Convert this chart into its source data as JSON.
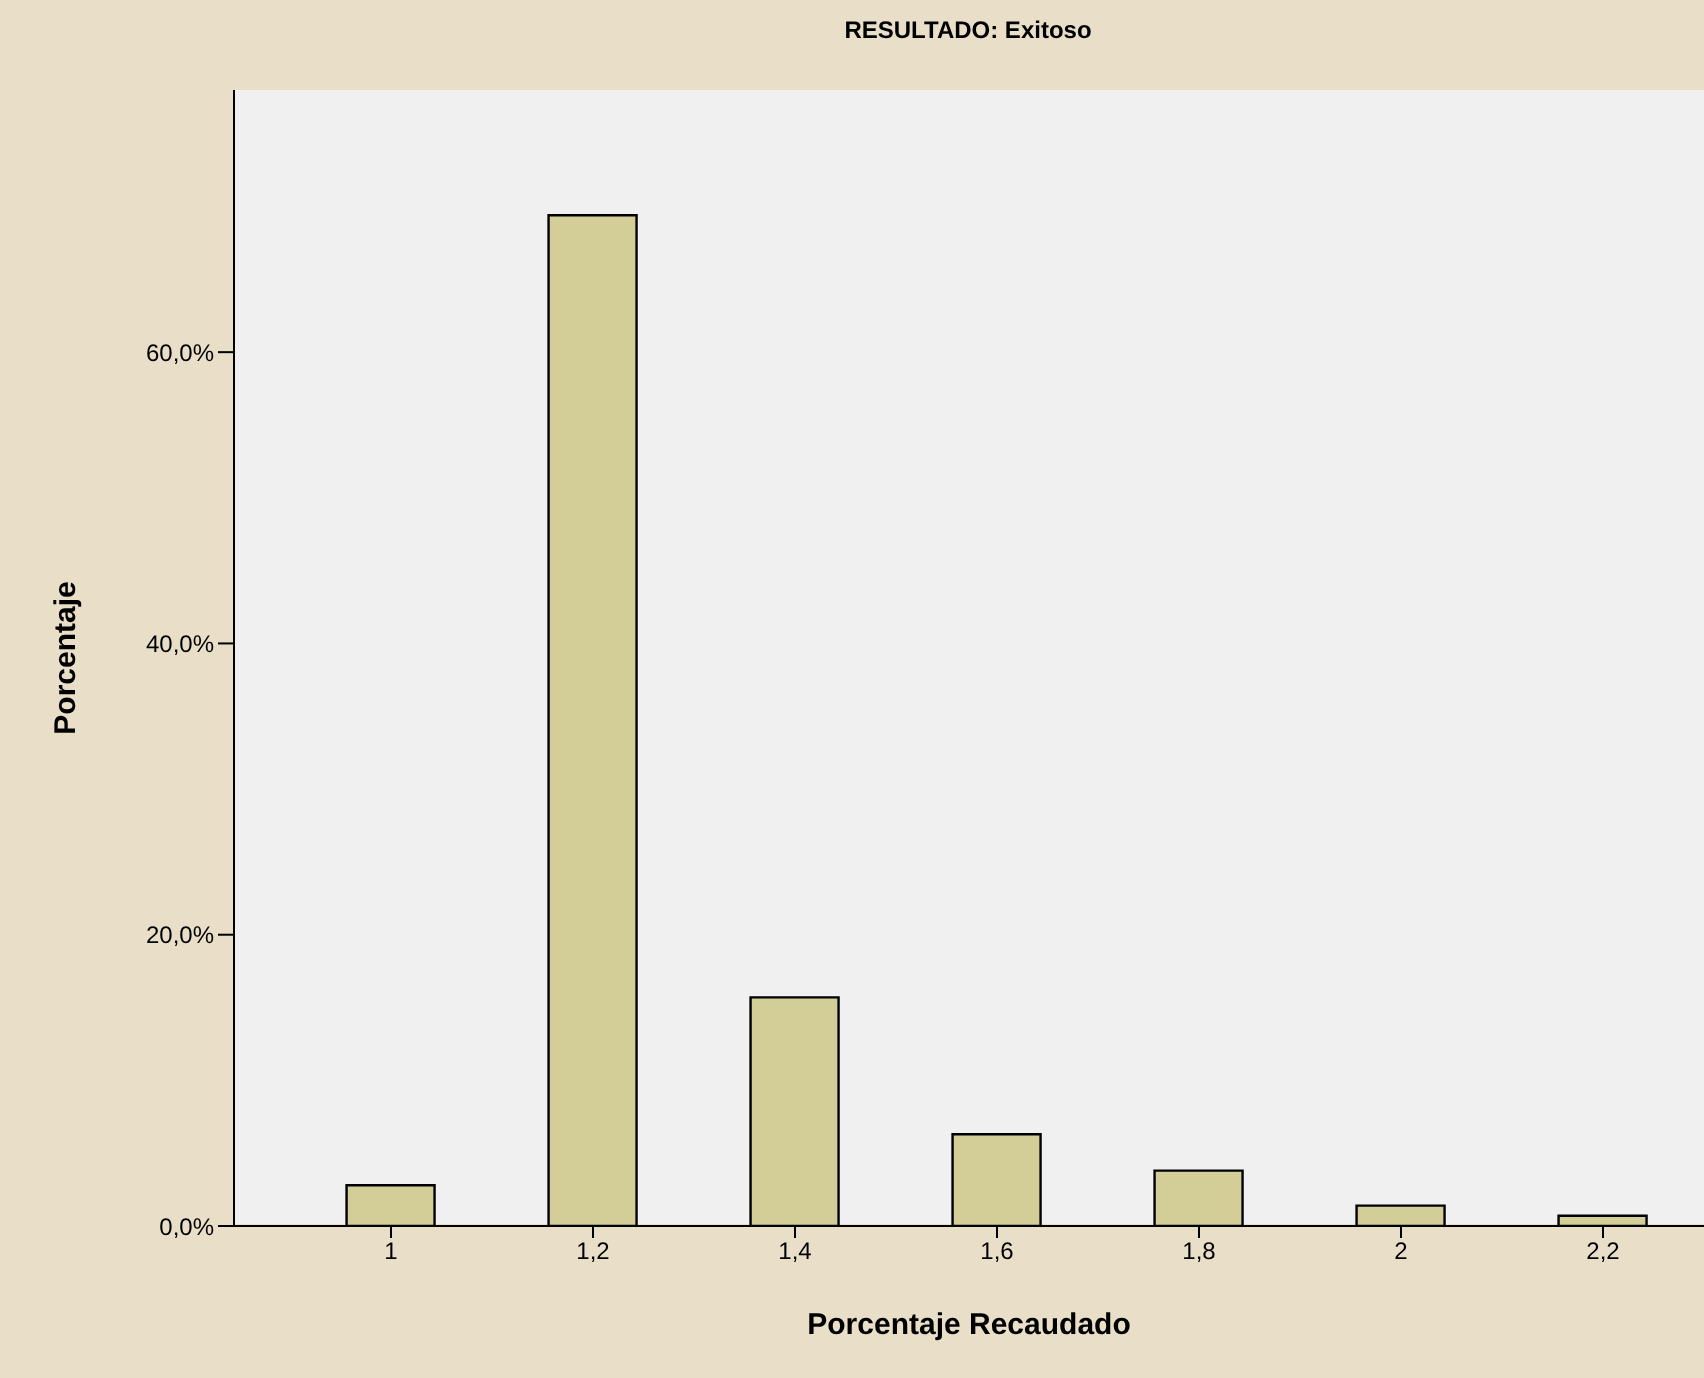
{
  "chart_data": {
    "type": "bar",
    "title": "RESULTADO: Exitoso",
    "xlabel": "Porcentaje Recaudado",
    "ylabel": "Porcentaje",
    "categories": [
      "1",
      "1,2",
      "1,4",
      "1,6",
      "1,8",
      "2",
      "2,2"
    ],
    "values": [
      2.8,
      69.4,
      15.7,
      6.3,
      3.8,
      1.4,
      0.7
    ],
    "color": "#d3ce98",
    "ylim": [
      0,
      78
    ],
    "yticks": [
      {
        "value": 0,
        "label": "0,0%"
      },
      {
        "value": 20,
        "label": "20,0%"
      },
      {
        "value": 40,
        "label": "40,0%"
      },
      {
        "value": 60,
        "label": "60,0%"
      }
    ],
    "grid": false
  }
}
